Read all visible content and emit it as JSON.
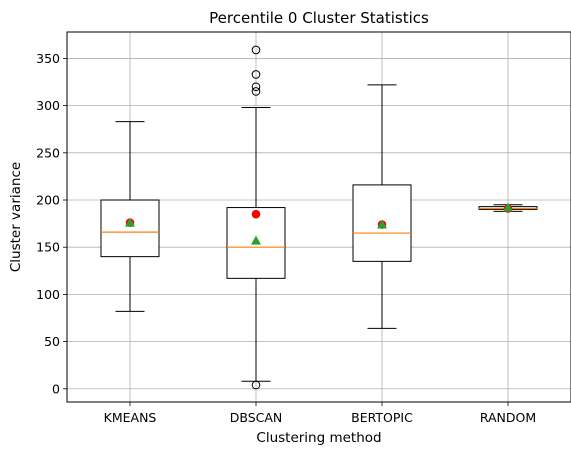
{
  "chart_data": {
    "type": "boxplot",
    "title": "Percentile 0 Cluster Statistics",
    "xlabel": "Clustering method",
    "ylabel": "Cluster variance",
    "ylim": [
      -14,
      378
    ],
    "yticks": [
      0,
      50,
      100,
      150,
      200,
      250,
      300,
      350
    ],
    "grid": true,
    "categories": [
      "KMEANS",
      "DBSCAN",
      "BERTOPIC",
      "RANDOM"
    ],
    "boxes": [
      {
        "whislo": 82,
        "q1": 140,
        "med": 166,
        "q3": 200,
        "whishi": 283,
        "mean": 176,
        "red_dot": 176,
        "fliers": []
      },
      {
        "whislo": 8,
        "q1": 117,
        "med": 150,
        "q3": 192,
        "whishi": 298,
        "mean": 157,
        "red_dot": 185,
        "fliers": [
          4,
          315,
          320,
          333,
          359
        ]
      },
      {
        "whislo": 64,
        "q1": 135,
        "med": 165,
        "q3": 216,
        "whishi": 322,
        "mean": 174,
        "red_dot": 174,
        "fliers": []
      },
      {
        "whislo": 188,
        "q1": 190,
        "med": 191,
        "q3": 193,
        "whishi": 195,
        "mean": 192,
        "red_dot": 191,
        "fliers": []
      }
    ],
    "colors": {
      "box": "#000000",
      "median": "#ff7f0e",
      "mean": "#2ca02c",
      "red_dot": "#ff0000",
      "grid": "#b0b0b0"
    }
  }
}
